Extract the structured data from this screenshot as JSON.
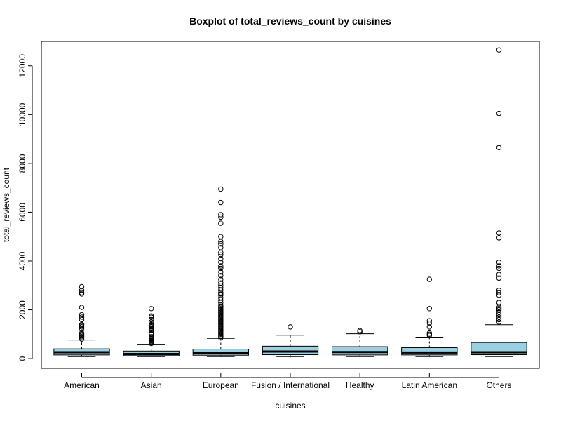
{
  "chart_data": {
    "type": "boxplot",
    "title": "Boxplot of total_reviews_count by cuisines",
    "xlabel": "cuisines",
    "ylabel": "total_reviews_count",
    "ylim": [
      -400,
      13000
    ],
    "y_ticks": [
      0,
      2000,
      4000,
      6000,
      8000,
      10000,
      12000
    ],
    "grid": false,
    "box_color": "#9ad0e2",
    "categories": [
      "American",
      "Asian",
      "European",
      "Fusion / International",
      "Healthy",
      "Latin American",
      "Others"
    ],
    "boxes": [
      {
        "category": "American",
        "whisker_low": 80,
        "q1": 150,
        "median": 260,
        "q3": 400,
        "whisker_high": 760,
        "outliers": [
          800,
          850,
          900,
          950,
          1000,
          1050,
          1200,
          1300,
          1350,
          1400,
          1600,
          1700,
          1800,
          2100,
          2650,
          2700,
          2800,
          2950
        ]
      },
      {
        "category": "Asian",
        "whisker_low": 80,
        "q1": 120,
        "median": 190,
        "q3": 310,
        "whisker_high": 590,
        "outliers": [
          620,
          660,
          700,
          740,
          780,
          820,
          860,
          900,
          1000,
          1050,
          1150,
          1200,
          1250,
          1300,
          1350,
          1400,
          1500,
          1600,
          1700,
          1750,
          2050
        ]
      },
      {
        "category": "European",
        "whisker_low": 80,
        "q1": 140,
        "median": 230,
        "q3": 390,
        "whisker_high": 830,
        "outliers": [
          850,
          900,
          950,
          1000,
          1050,
          1100,
          1150,
          1200,
          1250,
          1300,
          1350,
          1400,
          1450,
          1500,
          1550,
          1600,
          1650,
          1700,
          1750,
          1800,
          1850,
          1900,
          1950,
          2000,
          2050,
          2100,
          2150,
          2200,
          2300,
          2400,
          2500,
          2600,
          2650,
          2700,
          2800,
          2900,
          3000,
          3100,
          3250,
          3400,
          3550,
          3700,
          3800,
          3950,
          4100,
          4250,
          4350,
          4550,
          4700,
          4800,
          5000,
          5550,
          5800,
          5900,
          6400,
          6950
        ]
      },
      {
        "category": "Fusion / International",
        "whisker_low": 80,
        "q1": 160,
        "median": 290,
        "q3": 510,
        "whisker_high": 960,
        "outliers": [
          1300
        ]
      },
      {
        "category": "Healthy",
        "whisker_low": 80,
        "q1": 150,
        "median": 270,
        "q3": 490,
        "whisker_high": 1020,
        "outliers": [
          1100,
          1150
        ]
      },
      {
        "category": "Latin American",
        "whisker_low": 80,
        "q1": 150,
        "median": 250,
        "q3": 450,
        "whisker_high": 880,
        "outliers": [
          950,
          1000,
          1050,
          1300,
          1450,
          1550,
          2050,
          3250
        ]
      },
      {
        "category": "Others",
        "whisker_low": 80,
        "q1": 160,
        "median": 260,
        "q3": 660,
        "whisker_high": 1390,
        "outliers": [
          1500,
          1600,
          1700,
          1800,
          1900,
          2000,
          2050,
          2100,
          2300,
          2600,
          2700,
          2800,
          3300,
          3450,
          3700,
          3800,
          3950,
          4950,
          5150,
          8650,
          10050,
          12650
        ]
      }
    ]
  }
}
